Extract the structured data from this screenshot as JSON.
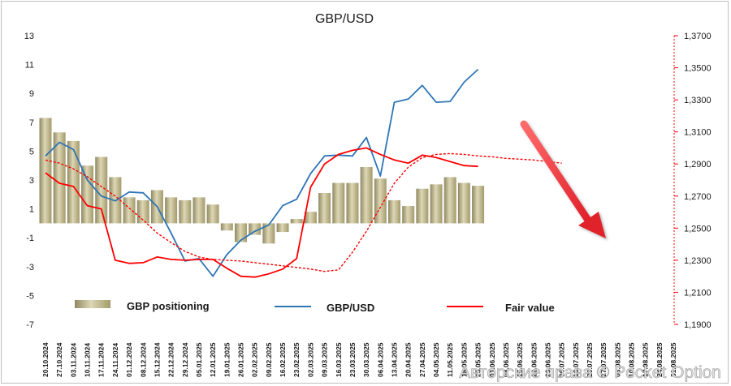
{
  "chart_data": {
    "type": "bar+line",
    "title": "GBP/USD",
    "left_axis": {
      "min": -7,
      "max": 13,
      "ticks": [
        13,
        11,
        9,
        7,
        5,
        3,
        1,
        -1,
        -3,
        -5,
        -7
      ]
    },
    "right_axis": {
      "min": 1.19,
      "max": 1.37,
      "ticks": [
        "1,3700",
        "1,3500",
        "1,3300",
        "1,3100",
        "1,2900",
        "1,2700",
        "1,2500",
        "1,2300",
        "1,2100",
        "1,1900"
      ]
    },
    "x_labels": [
      "20.10.2024",
      "27.10.2024",
      "03.11.2024",
      "10.11.2024",
      "17.11.2024",
      "24.11.2024",
      "01.12.2024",
      "08.12.2024",
      "15.12.2024",
      "22.12.2024",
      "29.12.2024",
      "05.01.2025",
      "12.01.2025",
      "19.01.2025",
      "26.01.2025",
      "02.02.2025",
      "09.02.2025",
      "16.02.2025",
      "23.02.2025",
      "02.03.2025",
      "09.03.2025",
      "16.03.2025",
      "23.03.2025",
      "30.03.2025",
      "06.04.2025",
      "13.04.2025",
      "20.04.2025",
      "27.04.2025",
      "04.05.2025",
      "11.05.2025",
      "18.05.2025",
      "25.05.2025",
      "01.06.2025",
      "08.06.2025",
      "15.06.2025",
      "22.06.2025",
      "29.06.2025",
      "06.07.2025",
      "13.07.2025",
      "20.07.2025",
      "27.07.2025",
      "03.08.2025",
      "10.08.2025",
      "17.08.2025",
      "24.08.2025",
      "31.08.2025"
    ],
    "series": [
      {
        "name": "GBP positioning",
        "type": "bar",
        "axis": "left",
        "color": "#bdb58a",
        "values": [
          7.3,
          6.3,
          5.7,
          4.0,
          4.6,
          3.2,
          1.8,
          1.6,
          2.3,
          1.8,
          1.6,
          1.8,
          1.3,
          -0.5,
          -1.3,
          -0.8,
          -1.4,
          -0.6,
          0.3,
          0.8,
          2.1,
          2.8,
          2.8,
          3.9,
          3.1,
          1.6,
          1.2,
          2.4,
          2.7,
          3.2,
          2.8,
          2.6
        ]
      },
      {
        "name": "GBP/USD",
        "type": "line",
        "axis": "right",
        "color": "#2e75b6",
        "values": [
          1.295,
          1.3035,
          1.299,
          1.28,
          1.27,
          1.267,
          1.2725,
          1.272,
          1.2635,
          1.247,
          1.2295,
          1.231,
          1.22,
          1.2335,
          1.2425,
          1.248,
          1.252,
          1.264,
          1.268,
          1.284,
          1.295,
          1.2955,
          1.295,
          1.3065,
          1.2825,
          1.3285,
          1.3305,
          1.339,
          1.3285,
          1.329,
          1.341,
          1.349
        ]
      },
      {
        "name": "Fair value",
        "type": "line",
        "axis": "right",
        "color": "#ff0000",
        "values": [
          1.2845,
          1.278,
          1.276,
          1.264,
          1.262,
          1.23,
          1.228,
          1.2285,
          1.232,
          1.2305,
          1.23,
          1.2305,
          1.2305,
          1.225,
          1.22,
          1.2195,
          1.2215,
          1.2245,
          1.231,
          1.2755,
          1.29,
          1.296,
          1.2985,
          1.3,
          1.296,
          1.2925,
          1.2905,
          1.2955,
          1.294,
          1.2915,
          1.289,
          1.2885
        ]
      },
      {
        "name": "Fair value trend",
        "type": "dashed-line",
        "axis": "right",
        "color": "#ff0000",
        "values": [
          1.2925,
          1.2905,
          1.287,
          1.282,
          1.276,
          1.27,
          1.2625,
          1.255,
          1.247,
          1.241,
          1.2355,
          1.232,
          1.2305,
          1.23,
          1.2295,
          1.2285,
          1.2275,
          1.2265,
          1.2255,
          1.2245,
          1.223,
          1.224,
          1.235,
          1.248,
          1.263,
          1.278,
          1.288,
          1.294,
          1.296,
          1.2965,
          1.296,
          1.295,
          1.2945,
          1.2935,
          1.293,
          1.2925,
          1.2915,
          1.2905
        ]
      }
    ],
    "legend": [
      "GBP positioning",
      "GBP/USD",
      "Fair value"
    ],
    "annotation": "red arrow pointing down",
    "watermark": "Авторские права © Pocket Option"
  }
}
